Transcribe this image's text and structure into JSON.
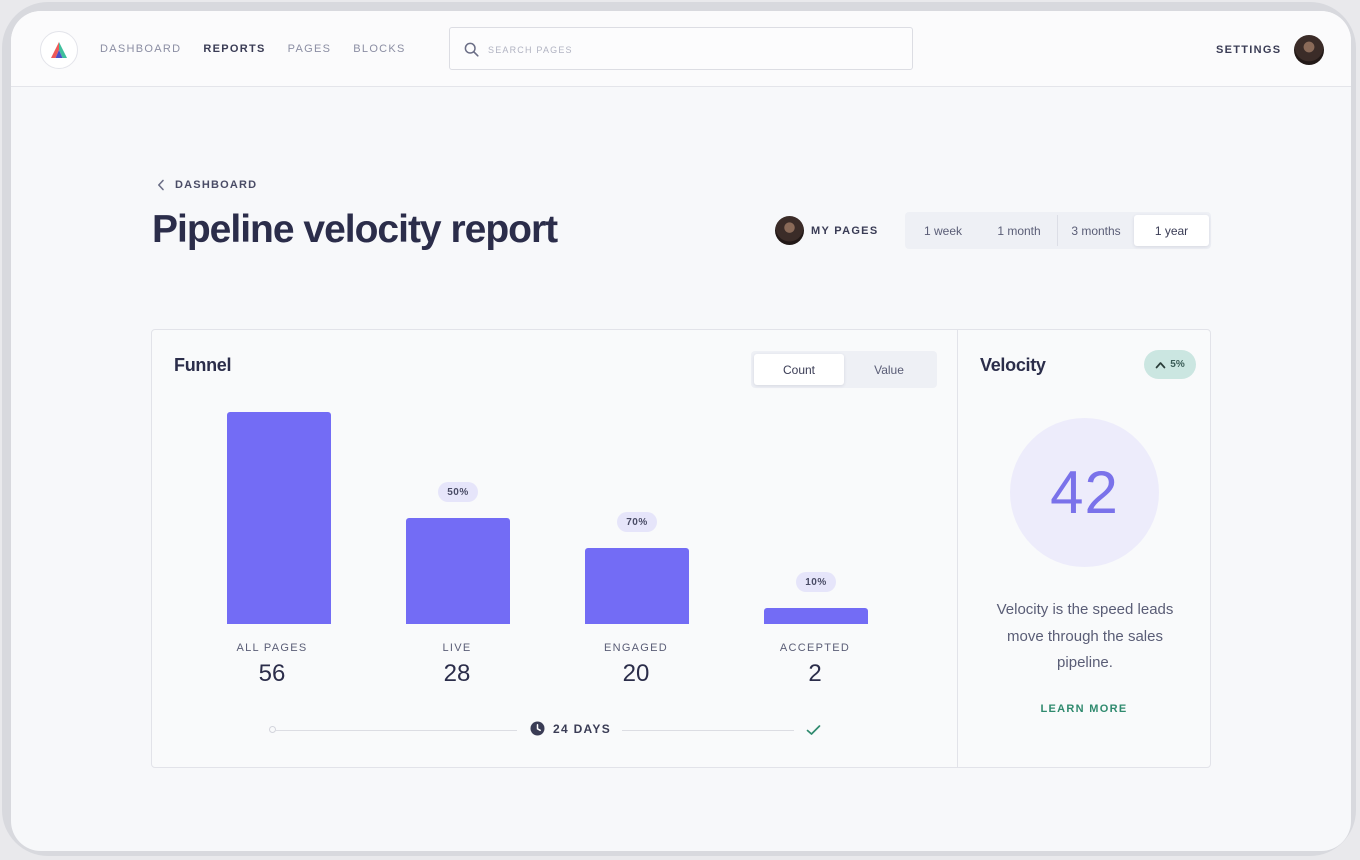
{
  "nav": {
    "items": [
      {
        "label": "DASHBOARD",
        "active": false
      },
      {
        "label": "REPORTS",
        "active": true
      },
      {
        "label": "PAGES",
        "active": false
      },
      {
        "label": "BLOCKS",
        "active": false
      }
    ],
    "search_placeholder": "SEARCH PAGES",
    "settings_label": "SETTINGS"
  },
  "header": {
    "breadcrumb": "DASHBOARD",
    "title": "Pipeline velocity report",
    "owner_filter": "MY PAGES",
    "ranges": [
      "1 week",
      "1 month",
      "3 months",
      "1 year"
    ],
    "selected_range": "1 year"
  },
  "funnel": {
    "title": "Funnel",
    "toggle": [
      "Count",
      "Value"
    ],
    "selected_toggle": "Count",
    "duration": "24 DAYS",
    "stages": [
      {
        "label": "ALL PAGES",
        "value": "56",
        "conversion": null
      },
      {
        "label": "LIVE",
        "value": "28",
        "conversion": "50%"
      },
      {
        "label": "ENGAGED",
        "value": "20",
        "conversion": "70%"
      },
      {
        "label": "ACCEPTED",
        "value": "2",
        "conversion": "10%"
      }
    ]
  },
  "velocity": {
    "title": "Velocity",
    "trend": "5%",
    "trend_direction": "up",
    "value": "42",
    "description": "Velocity is the speed leads move through the sales pipeline.",
    "cta": "LEARN MORE"
  },
  "chart_data": {
    "type": "bar",
    "categories": [
      "ALL PAGES",
      "LIVE",
      "ENGAGED",
      "ACCEPTED"
    ],
    "values": [
      56,
      28,
      20,
      2
    ],
    "bar_color": "#736cf5"
  },
  "colors": {
    "accent": "#736cf5",
    "accent_soft": "#edecfb",
    "positive": "#2f8a6e",
    "trend_bg": "#cbe6e1"
  }
}
